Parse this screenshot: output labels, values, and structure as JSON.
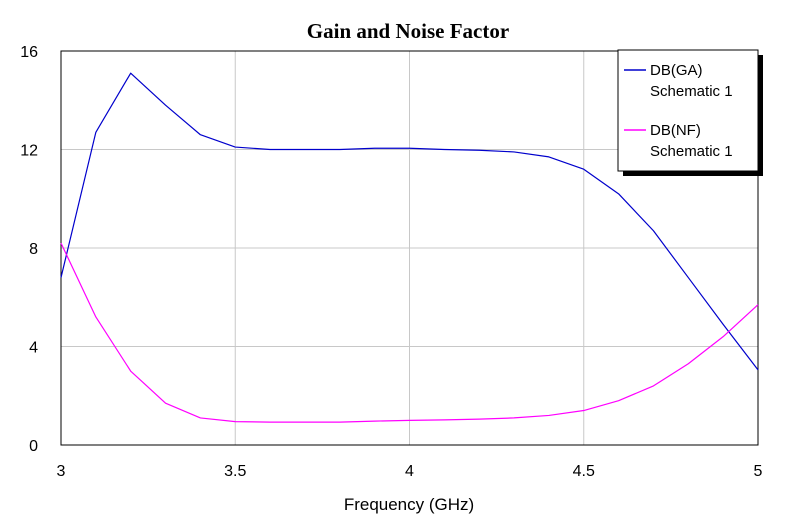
{
  "chart_data": {
    "type": "line",
    "title": "Gain and Noise Factor",
    "xlabel": "Frequency (GHz)",
    "ylabel": "",
    "xlim": [
      3,
      5
    ],
    "ylim": [
      0,
      16
    ],
    "x_ticks": [
      "3",
      "3.5",
      "4",
      "4.5",
      "5"
    ],
    "x_tick_values": [
      3,
      3.5,
      4,
      4.5,
      5
    ],
    "y_ticks": [
      "0",
      "4",
      "8",
      "12",
      "16"
    ],
    "y_tick_values": [
      0,
      4,
      8,
      12,
      16
    ],
    "grid": true,
    "legend_position": "top-right",
    "series": [
      {
        "name": "DB(GA)",
        "subname": "Schematic 1",
        "color": "#0000cc",
        "x": [
          3.0,
          3.1,
          3.2,
          3.3,
          3.4,
          3.5,
          3.6,
          3.7,
          3.8,
          3.9,
          4.0,
          4.1,
          4.2,
          4.3,
          4.4,
          4.5,
          4.6,
          4.7,
          4.8,
          4.9,
          5.0
        ],
        "y": [
          6.8,
          12.7,
          15.1,
          13.8,
          12.6,
          12.1,
          12.0,
          12.0,
          12.0,
          12.05,
          12.05,
          12.0,
          11.97,
          11.9,
          11.7,
          11.2,
          10.2,
          8.7,
          6.8,
          4.9,
          3.05
        ]
      },
      {
        "name": "DB(NF)",
        "subname": "Schematic 1",
        "color": "#ff00ff",
        "x": [
          3.0,
          3.1,
          3.2,
          3.3,
          3.4,
          3.5,
          3.6,
          3.7,
          3.8,
          3.9,
          4.0,
          4.1,
          4.2,
          4.3,
          4.4,
          4.5,
          4.6,
          4.7,
          4.8,
          4.9,
          5.0
        ],
        "y": [
          8.2,
          5.2,
          3.0,
          1.7,
          1.1,
          0.95,
          0.93,
          0.93,
          0.93,
          0.97,
          1.0,
          1.02,
          1.05,
          1.1,
          1.2,
          1.4,
          1.8,
          2.4,
          3.3,
          4.4,
          5.7
        ]
      }
    ]
  }
}
